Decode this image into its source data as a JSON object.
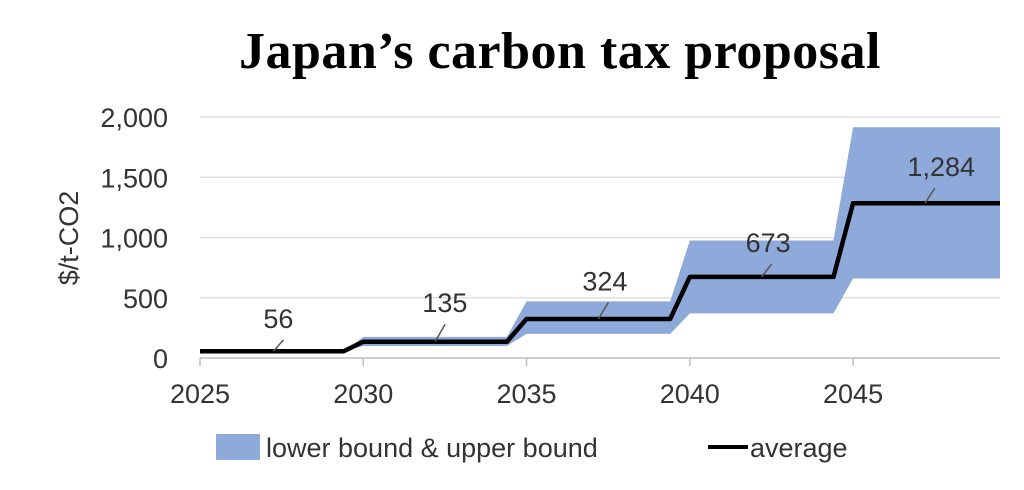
{
  "chart_data": {
    "type": "area",
    "title": "Japan’s carbon tax proposal",
    "ylabel": "$/t-CO2",
    "xlabel": "",
    "xlim": [
      2025,
      2049.5
    ],
    "ylim": [
      0,
      2000
    ],
    "x_ticks": [
      "2025",
      "2030",
      "2035",
      "2040",
      "2045"
    ],
    "y_ticks": [
      "0",
      "500",
      "1,000",
      "1,500",
      "2,000"
    ],
    "grid": "horizontal",
    "legend_position": "bottom",
    "colors": {
      "band": "#8eaadb",
      "average": "#000000",
      "grid": "#d9d9d9",
      "axis": "#bfbfbf"
    },
    "series": [
      {
        "name": "lower bound & upper bound",
        "kind": "band",
        "x": [
          2025,
          2029.4,
          2030,
          2034.4,
          2035,
          2039.4,
          2040,
          2044.4,
          2045,
          2049.5
        ],
        "lower": [
          56,
          56,
          100,
          100,
          200,
          200,
          370,
          370,
          660,
          660
        ],
        "upper": [
          56,
          56,
          175,
          175,
          470,
          470,
          975,
          975,
          1915,
          1915
        ]
      },
      {
        "name": "average",
        "kind": "line",
        "x": [
          2025,
          2029.4,
          2030,
          2034.4,
          2035,
          2039.4,
          2040,
          2044.4,
          2045,
          2049.5
        ],
        "y": [
          56,
          56,
          135,
          135,
          324,
          324,
          673,
          673,
          1284,
          1284
        ]
      }
    ],
    "annotations": [
      {
        "text": "56",
        "x": 2027.25,
        "y": 56,
        "label_x": 2027.4,
        "label_y": 250
      },
      {
        "text": "135",
        "x": 2032.2,
        "y": 135,
        "label_x": 2032.5,
        "label_y": 380
      },
      {
        "text": "324",
        "x": 2037.2,
        "y": 324,
        "label_x": 2037.4,
        "label_y": 560
      },
      {
        "text": "673",
        "x": 2042.2,
        "y": 673,
        "label_x": 2042.4,
        "label_y": 880
      },
      {
        "text": "1,284",
        "x": 2047.2,
        "y": 1284,
        "label_x": 2047.7,
        "label_y": 1510
      }
    ]
  }
}
